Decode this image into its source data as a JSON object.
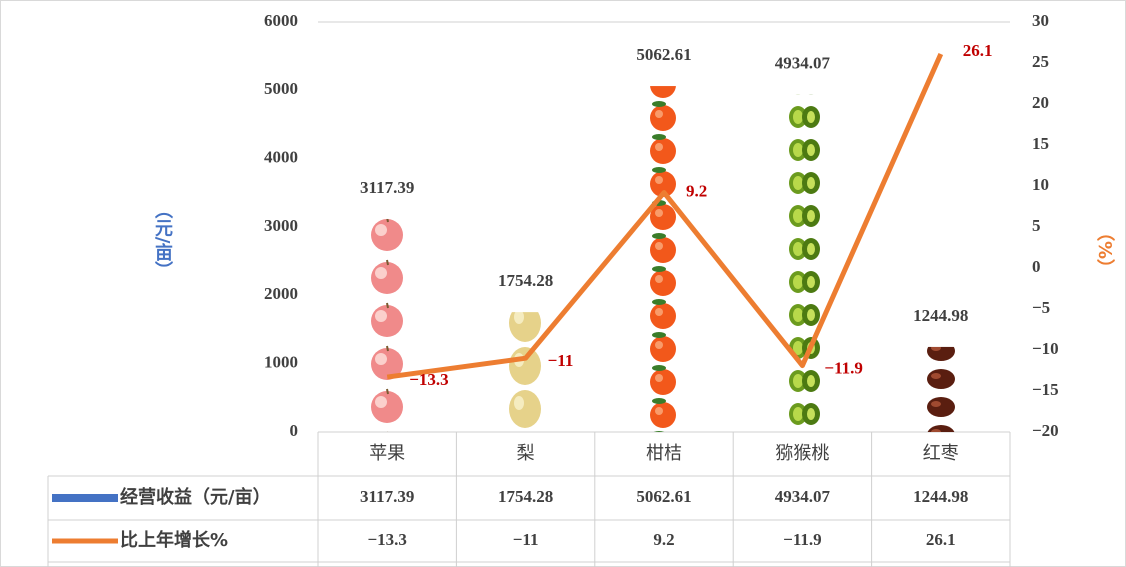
{
  "chart_data": {
    "type": "bar",
    "categories": [
      "苹果",
      "梨",
      "柑桔",
      "猕猴桃",
      "红枣"
    ],
    "series": [
      {
        "name": "经营收益（元/亩）",
        "color": "#4472c4",
        "values": [
          3117.39,
          1754.28,
          5062.61,
          4934.07,
          1244.98
        ]
      },
      {
        "name": "比上年增长%",
        "type": "line",
        "axis": "y2",
        "color": "#ed7d31",
        "values": [
          -13.3,
          -11,
          9.2,
          -11.9,
          26.1
        ],
        "value_labels": [
          "−13.3",
          "−11",
          "9.2",
          "−11.9",
          "26.1"
        ]
      }
    ],
    "ylabel": "（元/亩）",
    "y2label": "（%）",
    "ylim": [
      0,
      6000
    ],
    "yticks": [
      0,
      1000,
      2000,
      3000,
      4000,
      5000,
      6000
    ],
    "y2lim": [
      -20,
      30
    ],
    "y2ticks": [
      {
        "value": -20,
        "label": "−20"
      },
      {
        "value": -15,
        "label": "−15"
      },
      {
        "value": -10,
        "label": "−10"
      },
      {
        "value": -5,
        "label": "−5"
      },
      0,
      5,
      10,
      15,
      20,
      25,
      30
    ],
    "grid": false
  }
}
